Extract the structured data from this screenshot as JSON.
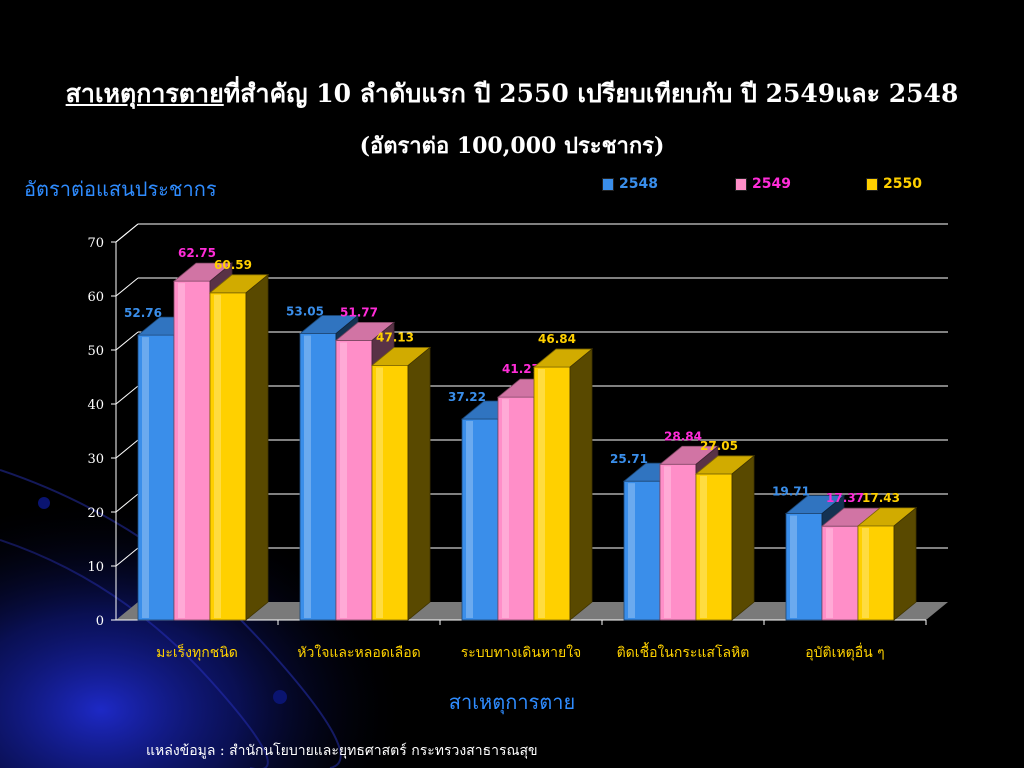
{
  "title_underlined": "สาเหตุการตาย",
  "title_rest": "ที่สำคัญ 10 ลำดับแรก ปี 2550 เปรียบเทียบกับ ปี 2549และ 2548",
  "subtitle": "(อัตราต่อ 100,000 ประชากร)",
  "source_label": "แหล่งข้อมูล : สำนักนโยบายและยุทธศาสตร์ กระทรวงสาธารณสุข",
  "colors": {
    "background": "#000000",
    "axis_label": "#2f8cff",
    "category_label": "#ffd200",
    "grid": "#ffffff"
  },
  "chart_data": {
    "type": "bar",
    "ylabel": "อัตราต่อแสนประชากร",
    "xlabel": "สาเหตุการตาย",
    "ylim": [
      0,
      70
    ],
    "yticks": [
      "0",
      "10",
      "20",
      "30",
      "40",
      "50",
      "60",
      "70"
    ],
    "grid": true,
    "legend_position": "top-right",
    "categories": [
      "มะเร็งทุกชนิด",
      "หัวใจและหลอดเลือด",
      "ระบบทางเดินหายใจ",
      "ติดเชื้อในกระแสโลหิต",
      "อุบัติเหตุอื่น ๆ"
    ],
    "series": [
      {
        "name": "2548",
        "color": "#3a8eea",
        "label_color": "#3a8eea",
        "values": [
          52.76,
          53.05,
          37.22,
          25.71,
          19.71
        ],
        "labels": [
          "52.76",
          "53.05",
          "37.22",
          "25.71",
          "19.71"
        ]
      },
      {
        "name": "2549",
        "color": "#ff8ec8",
        "label_color": "#ff2cd8",
        "values": [
          62.75,
          51.77,
          41.27,
          28.84,
          17.37
        ],
        "labels": [
          "62.75",
          "51.77",
          "41.27",
          "28.84",
          "17.37"
        ]
      },
      {
        "name": "2550",
        "color": "#ffd000",
        "label_color": "#ffd000",
        "values": [
          60.59,
          47.13,
          46.84,
          27.05,
          17.43
        ],
        "labels": [
          "60.59",
          "47.13",
          "46.84",
          "27.05",
          "17.43"
        ]
      }
    ]
  }
}
